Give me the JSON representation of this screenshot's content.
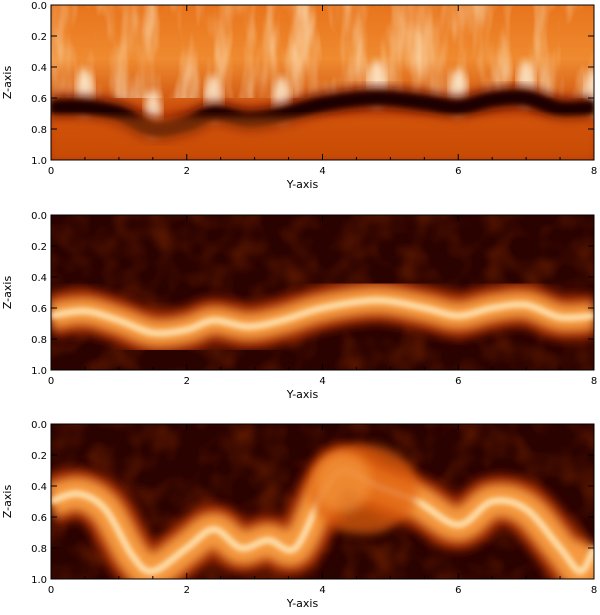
{
  "chart_data": [
    {
      "type": "heatmap",
      "xlabel": "Y-axis",
      "ylabel": "Z-axis",
      "xlim": [
        0,
        8
      ],
      "ylim": [
        0.0,
        1.0
      ],
      "y_reversed": true,
      "xticks": [
        0,
        2,
        4,
        6,
        8
      ],
      "xtick_labels": [
        "0",
        "2",
        "4",
        "6",
        "8"
      ],
      "yticks": [
        0.0,
        0.2,
        0.4,
        0.6,
        0.8,
        1.0
      ],
      "ytick_labels": [
        "0.0",
        "0.2",
        "0.4",
        "0.6",
        "0.8",
        "1.0"
      ],
      "colormap": [
        "#1a0000",
        "#5a0a00",
        "#a52a00",
        "#e06010",
        "#f59a40",
        "#ffe2b0",
        "#ffffff"
      ],
      "background": "bright",
      "interface_depth": [
        [
          0.0,
          0.66
        ],
        [
          0.5,
          0.66
        ],
        [
          1.0,
          0.7
        ],
        [
          1.5,
          0.8
        ],
        [
          2.0,
          0.77
        ],
        [
          2.4,
          0.7
        ],
        [
          2.9,
          0.74
        ],
        [
          3.4,
          0.71
        ],
        [
          4.0,
          0.64
        ],
        [
          4.8,
          0.6
        ],
        [
          5.5,
          0.63
        ],
        [
          6.0,
          0.66
        ],
        [
          6.5,
          0.61
        ],
        [
          7.0,
          0.6
        ],
        [
          7.5,
          0.67
        ],
        [
          8.0,
          0.66
        ]
      ]
    },
    {
      "type": "heatmap",
      "xlabel": "Y-axis",
      "ylabel": "Z-axis",
      "xlim": [
        0,
        8
      ],
      "ylim": [
        0.0,
        1.0
      ],
      "y_reversed": true,
      "xticks": [
        0,
        2,
        4,
        6,
        8
      ],
      "xtick_labels": [
        "0",
        "2",
        "4",
        "6",
        "8"
      ],
      "yticks": [
        0.0,
        0.2,
        0.4,
        0.6,
        0.8,
        1.0
      ],
      "ytick_labels": [
        "0.0",
        "0.2",
        "0.4",
        "0.6",
        "0.8",
        "1.0"
      ],
      "colormap": [
        "#1a0000",
        "#5a0a00",
        "#a52a00",
        "#e06010",
        "#f59a40",
        "#ffe2b0",
        "#ffffff"
      ],
      "background": "dark",
      "band_depth": [
        [
          0.0,
          0.65
        ],
        [
          0.5,
          0.62
        ],
        [
          1.0,
          0.68
        ],
        [
          1.5,
          0.76
        ],
        [
          2.0,
          0.74
        ],
        [
          2.4,
          0.68
        ],
        [
          2.9,
          0.72
        ],
        [
          3.4,
          0.68
        ],
        [
          4.0,
          0.6
        ],
        [
          4.8,
          0.55
        ],
        [
          5.5,
          0.6
        ],
        [
          6.0,
          0.65
        ],
        [
          6.5,
          0.6
        ],
        [
          7.0,
          0.58
        ],
        [
          7.5,
          0.66
        ],
        [
          8.0,
          0.65
        ]
      ]
    },
    {
      "type": "heatmap",
      "xlabel": "Y-axis",
      "ylabel": "Z-axis",
      "xlim": [
        0,
        8
      ],
      "ylim": [
        0.0,
        1.0
      ],
      "y_reversed": true,
      "xticks": [
        0,
        2,
        4,
        6,
        8
      ],
      "xtick_labels": [
        "0",
        "2",
        "4",
        "6",
        "8"
      ],
      "yticks": [
        0.0,
        0.2,
        0.4,
        0.6,
        0.8,
        1.0
      ],
      "ytick_labels": [
        "0.0",
        "0.2",
        "0.4",
        "0.6",
        "0.8",
        "1.0"
      ],
      "colormap": [
        "#1a0000",
        "#5a0a00",
        "#a52a00",
        "#e06010",
        "#f59a40",
        "#ffe2b0",
        "#ffffff"
      ],
      "background": "dark",
      "band_depth": [
        [
          0.0,
          0.5
        ],
        [
          0.4,
          0.45
        ],
        [
          0.8,
          0.55
        ],
        [
          1.2,
          0.85
        ],
        [
          1.5,
          0.95
        ],
        [
          2.0,
          0.8
        ],
        [
          2.4,
          0.68
        ],
        [
          2.8,
          0.8
        ],
        [
          3.2,
          0.75
        ],
        [
          3.6,
          0.8
        ],
        [
          4.0,
          0.45
        ],
        [
          4.3,
          0.3
        ],
        [
          4.8,
          0.4
        ],
        [
          5.4,
          0.5
        ],
        [
          6.0,
          0.65
        ],
        [
          6.5,
          0.5
        ],
        [
          7.0,
          0.55
        ],
        [
          7.5,
          0.8
        ],
        [
          7.8,
          0.95
        ],
        [
          8.0,
          0.8
        ]
      ]
    }
  ]
}
